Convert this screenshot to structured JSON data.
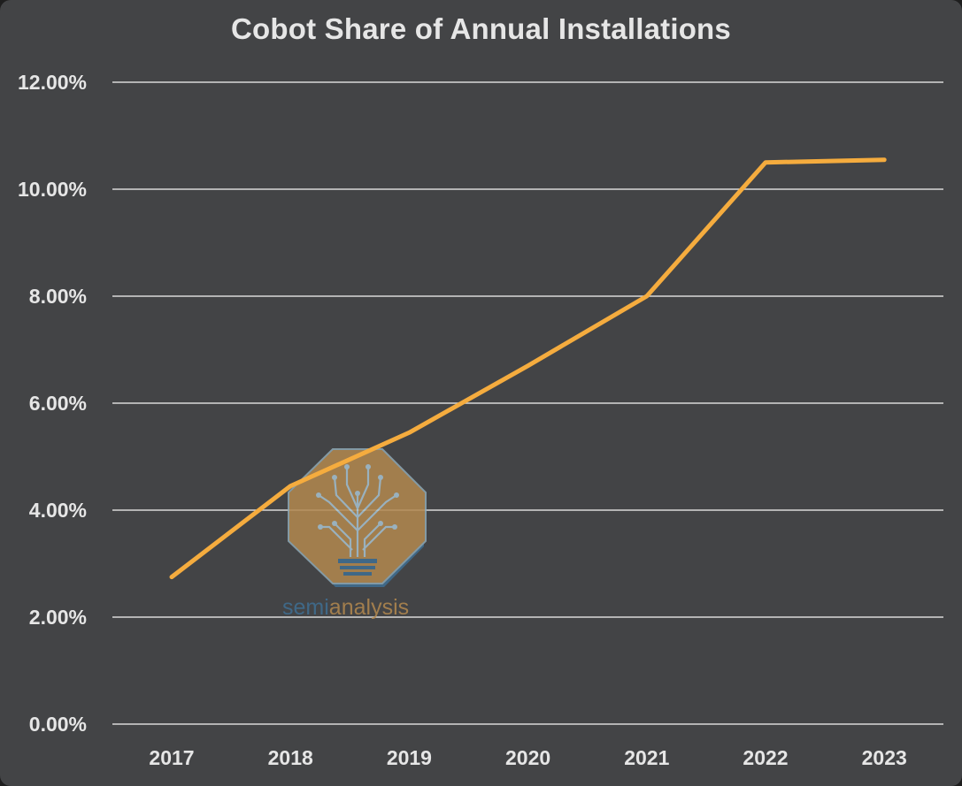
{
  "title": "Cobot Share of Annual Installations",
  "colors": {
    "background": "#434446",
    "line": "#f5ac3e",
    "grid": "#d9d9d9",
    "text": "#e6e6e6",
    "watermark_orange": "#b3894f",
    "watermark_blue": "#3f6f93"
  },
  "watermark": {
    "icon": "semianalysis-tree-logo-icon",
    "text_part1": "semi",
    "text_part2": "analysis"
  },
  "chart_data": {
    "type": "line",
    "title": "Cobot Share of Annual Installations",
    "xlabel": "",
    "ylabel": "",
    "categories": [
      "2017",
      "2018",
      "2019",
      "2020",
      "2021",
      "2022",
      "2023"
    ],
    "series": [
      {
        "values": [
          2.75,
          4.45,
          5.45,
          6.7,
          8.0,
          10.5,
          10.55
        ]
      }
    ],
    "ylim": [
      0,
      12
    ],
    "yticks": [
      0,
      2,
      4,
      6,
      8,
      10,
      12
    ],
    "ytick_labels": [
      "0.00%",
      "2.00%",
      "4.00%",
      "6.00%",
      "8.00%",
      "10.00%",
      "12.00%"
    ],
    "grid": true,
    "legend": "none"
  }
}
